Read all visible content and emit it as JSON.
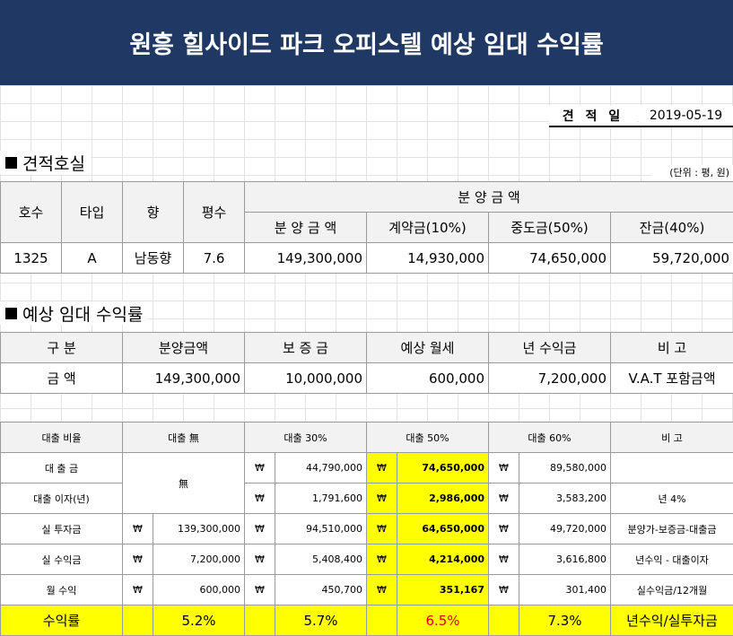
{
  "title": "원흥 힐사이드 파크 오피스텔 예상 임대 수익률",
  "estimate": {
    "label": "견 적 일",
    "date": "2019-05-19"
  },
  "section1": {
    "title": "견적호실",
    "unit_note": "(단위 : 평, 원)"
  },
  "unit_table": {
    "headers": {
      "room": "호수",
      "type": "타입",
      "direction": "향",
      "area": "평수",
      "group": "분 양 금 액",
      "sub": [
        "분 양 금 액",
        "계약금(10%)",
        "중도금(50%)",
        "잔금(40%)"
      ]
    },
    "row": {
      "room": "1325",
      "type": "A",
      "direction": "남동향",
      "area": "7.6",
      "values": [
        "149,300,000",
        "14,930,000",
        "74,650,000",
        "59,720,000"
      ]
    }
  },
  "section2": {
    "title": "예상 임대 수익률"
  },
  "rent_table": {
    "headers": [
      "구 분",
      "분양금액",
      "보 증 금",
      "예상 월세",
      "년 수익금",
      "비 고"
    ],
    "row": [
      "금 액",
      "149,300,000",
      "10,000,000",
      "600,000",
      "7,200,000",
      "V.A.T  포함금액"
    ]
  },
  "loan_table": {
    "currency": "₩",
    "headers": [
      "대출 비율",
      "대출 無",
      "대출 30%",
      "대출 50%",
      "대출 60%",
      "비    고"
    ],
    "no_loan_mark": "無",
    "rows": [
      {
        "label": "대 출 금",
        "none": "",
        "p30": "44,790,000",
        "p50": "74,650,000",
        "p60": "89,580,000",
        "note": ""
      },
      {
        "label": "대출 이자(년)",
        "none": "",
        "p30": "1,791,600",
        "p50": "2,986,000",
        "p60": "3,583,200",
        "note": "년 4%"
      },
      {
        "label": "실 투자금",
        "none": "139,300,000",
        "p30": "94,510,000",
        "p50": "64,650,000",
        "p60": "49,720,000",
        "note": "분양가-보증금-대출금"
      },
      {
        "label": "실 수익금",
        "none": "7,200,000",
        "p30": "5,408,400",
        "p50": "4,214,000",
        "p60": "3,616,800",
        "note": "년수익 - 대출이자"
      },
      {
        "label": "월 수익",
        "none": "600,000",
        "p30": "450,700",
        "p50": "351,167",
        "p60": "301,400",
        "note": "실수익금/12개월"
      }
    ],
    "yield_row": {
      "label": "수익률",
      "none": "5.2%",
      "p30": "5.7%",
      "p50": "6.5%",
      "p60": "7.3%",
      "note": "년수익/실투자금"
    }
  },
  "colors": {
    "banner": "#1f3864",
    "highlight": "#ffff00",
    "yield_red": "#e00000"
  }
}
